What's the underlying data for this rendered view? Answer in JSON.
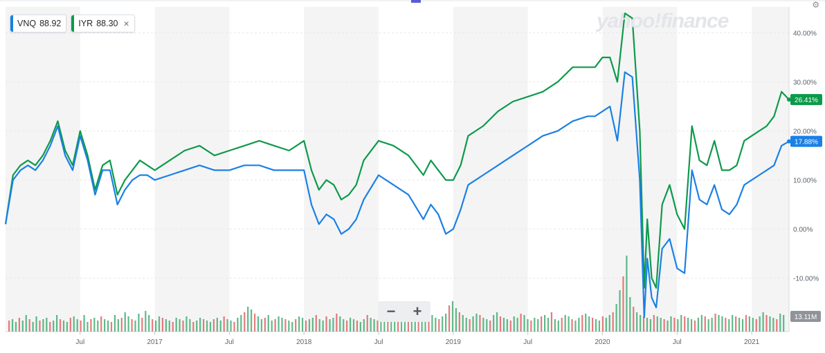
{
  "legend": [
    {
      "symbol": "VNQ",
      "value": "88.92",
      "color": "#1a80e5"
    },
    {
      "symbol": "IYR",
      "value": "88.30",
      "color": "#0c9a4a",
      "close": "×"
    }
  ],
  "logo": "yahoo!finance",
  "zoom": {
    "minus": "−",
    "plus": "+"
  },
  "corner_icon": "settings-icon",
  "chart_data": {
    "type": "line",
    "y_ticks": [
      "40.00%",
      "30.00%",
      "20.00%",
      "10.00%",
      "0.00%",
      "-10.00%"
    ],
    "y_tick_values": [
      40,
      30,
      20,
      10,
      0,
      -10
    ],
    "ylim": [
      -20.9,
      45.3
    ],
    "xlim": [
      2016.0,
      2021.25
    ],
    "x_ticks": [
      {
        "label": "Jul",
        "t": 2016.5
      },
      {
        "label": "2017",
        "t": 2017.0
      },
      {
        "label": "Jul",
        "t": 2017.5
      },
      {
        "label": "2018",
        "t": 2018.0
      },
      {
        "label": "Jul",
        "t": 2018.5
      },
      {
        "label": "2019",
        "t": 2019.0
      },
      {
        "label": "Jul",
        "t": 2019.5
      },
      {
        "label": "2020",
        "t": 2020.0
      },
      {
        "label": "Jul",
        "t": 2020.5
      },
      {
        "label": "2021",
        "t": 2021.0
      }
    ],
    "shaded_bands": [
      [
        2016.0,
        2016.5
      ],
      [
        2017.0,
        2017.5
      ],
      [
        2018.0,
        2018.5
      ],
      [
        2019.0,
        2019.5
      ],
      [
        2020.0,
        2020.5
      ],
      [
        2021.0,
        2021.25
      ]
    ],
    "series": [
      {
        "name": "IYR",
        "color": "#0c9a4a",
        "end_label": "26.41%",
        "x": [
          2016.0,
          2016.05,
          2016.1,
          2016.15,
          2016.2,
          2016.25,
          2016.3,
          2016.35,
          2016.4,
          2016.45,
          2016.5,
          2016.55,
          2016.6,
          2016.65,
          2016.7,
          2016.75,
          2016.8,
          2016.85,
          2016.9,
          2016.95,
          2017.0,
          2017.1,
          2017.2,
          2017.3,
          2017.4,
          2017.5,
          2017.6,
          2017.7,
          2017.8,
          2017.9,
          2018.0,
          2018.05,
          2018.1,
          2018.15,
          2018.2,
          2018.25,
          2018.3,
          2018.35,
          2018.4,
          2018.5,
          2018.6,
          2018.7,
          2018.8,
          2018.85,
          2018.9,
          2018.95,
          2019.0,
          2019.05,
          2019.1,
          2019.2,
          2019.3,
          2019.4,
          2019.5,
          2019.6,
          2019.7,
          2019.8,
          2019.9,
          2019.95,
          2020.0,
          2020.05,
          2020.1,
          2020.15,
          2020.2,
          2020.25,
          2020.28,
          2020.3,
          2020.33,
          2020.36,
          2020.4,
          2020.45,
          2020.5,
          2020.55,
          2020.6,
          2020.65,
          2020.7,
          2020.75,
          2020.8,
          2020.85,
          2020.9,
          2020.95,
          2021.0,
          2021.05,
          2021.1,
          2021.15,
          2021.2,
          2021.25
        ],
        "y": [
          1,
          11,
          13,
          14,
          13,
          15,
          18,
          22,
          16,
          13,
          20,
          15,
          8,
          13,
          14,
          7,
          10,
          12,
          14,
          13,
          12,
          14,
          16,
          17,
          15,
          16,
          17,
          18,
          17,
          16,
          18,
          12,
          8,
          10,
          9,
          6,
          7,
          9,
          14,
          18,
          17,
          15,
          11,
          14,
          12,
          10,
          10,
          13,
          19,
          21,
          24,
          26,
          27,
          28,
          30,
          33,
          33,
          33,
          35,
          35,
          30,
          44,
          43,
          20,
          -12,
          2,
          -10,
          -12,
          5,
          9,
          3,
          0,
          21,
          14,
          13,
          18,
          12,
          12,
          13,
          18,
          19,
          20,
          21,
          23,
          28,
          26.41
        ]
      },
      {
        "name": "VNQ",
        "color": "#1a80e5",
        "end_label": "17.88%",
        "x": [
          2016.0,
          2016.05,
          2016.1,
          2016.15,
          2016.2,
          2016.25,
          2016.3,
          2016.35,
          2016.4,
          2016.45,
          2016.5,
          2016.55,
          2016.6,
          2016.65,
          2016.7,
          2016.75,
          2016.8,
          2016.85,
          2016.9,
          2016.95,
          2017.0,
          2017.1,
          2017.2,
          2017.3,
          2017.4,
          2017.5,
          2017.6,
          2017.7,
          2017.8,
          2017.9,
          2018.0,
          2018.05,
          2018.1,
          2018.15,
          2018.2,
          2018.25,
          2018.3,
          2018.35,
          2018.4,
          2018.5,
          2018.6,
          2018.7,
          2018.8,
          2018.85,
          2018.9,
          2018.95,
          2019.0,
          2019.05,
          2019.1,
          2019.2,
          2019.3,
          2019.4,
          2019.5,
          2019.6,
          2019.7,
          2019.8,
          2019.9,
          2019.95,
          2020.0,
          2020.05,
          2020.1,
          2020.15,
          2020.2,
          2020.25,
          2020.28,
          2020.3,
          2020.33,
          2020.36,
          2020.4,
          2020.45,
          2020.5,
          2020.55,
          2020.6,
          2020.65,
          2020.7,
          2020.75,
          2020.8,
          2020.85,
          2020.9,
          2020.95,
          2021.0,
          2021.05,
          2021.1,
          2021.15,
          2021.2,
          2021.25
        ],
        "y": [
          1,
          10,
          12,
          13,
          12,
          14,
          17,
          21,
          15,
          12,
          19,
          14,
          7,
          12,
          12,
          5,
          8,
          10,
          11,
          11,
          10,
          11,
          12,
          13,
          12,
          12,
          13,
          13,
          12,
          12,
          12,
          5,
          1,
          3,
          2,
          -1,
          0,
          2,
          6,
          11,
          9,
          7,
          2,
          5,
          3,
          -1,
          0,
          4,
          9,
          11,
          13,
          15,
          17,
          19,
          20,
          22,
          23,
          23,
          24,
          25,
          18,
          32,
          31,
          10,
          -18,
          -6,
          -14,
          -16,
          -4,
          -2,
          -8,
          -9,
          12,
          6,
          5,
          9,
          4,
          3,
          5,
          9,
          10,
          11,
          12,
          13,
          17,
          17.88
        ]
      }
    ],
    "volume": {
      "ylim": [
        0,
        60
      ],
      "label": "13.11M",
      "values": [
        8,
        9,
        7,
        10,
        8,
        12,
        9,
        7,
        11,
        8,
        9,
        10,
        7,
        8,
        12,
        9,
        8,
        7,
        10,
        11,
        9,
        8,
        12,
        7,
        9,
        10,
        8,
        11,
        9,
        8,
        7,
        12,
        9,
        10,
        14,
        11,
        9,
        8,
        13,
        10,
        15,
        12,
        9,
        8,
        11,
        10,
        9,
        8,
        7,
        10,
        9,
        8,
        11,
        9,
        7,
        8,
        10,
        9,
        8,
        7,
        9,
        10,
        8,
        11,
        9,
        8,
        7,
        10,
        12,
        14,
        18,
        16,
        13,
        11,
        9,
        10,
        12,
        8,
        9,
        11,
        10,
        9,
        8,
        7,
        9,
        11,
        10,
        8,
        9,
        10,
        12,
        9,
        8,
        11,
        9,
        10,
        13,
        11,
        9,
        8,
        10,
        9,
        8,
        7,
        9,
        12,
        10,
        9,
        8,
        11,
        13,
        10,
        9,
        12,
        11,
        8,
        10,
        9,
        14,
        12,
        11,
        10,
        9,
        8,
        12,
        10,
        9,
        11,
        13,
        19,
        22,
        17,
        14,
        12,
        10,
        9,
        11,
        13,
        12,
        10,
        9,
        8,
        12,
        14,
        11,
        10,
        9,
        8,
        11,
        10,
        13,
        12,
        9,
        8,
        10,
        9,
        11,
        12,
        10,
        14,
        9,
        8,
        10,
        12,
        11,
        9,
        8,
        10,
        12,
        13,
        11,
        10,
        9,
        8,
        11,
        10,
        12,
        14,
        20,
        30,
        40,
        55,
        25,
        18,
        14,
        12,
        11,
        10,
        9,
        12,
        11,
        10,
        9,
        8,
        11,
        10,
        9,
        12,
        11,
        10,
        9,
        8,
        10,
        12,
        11,
        9,
        10,
        13,
        12,
        11,
        10,
        9,
        12,
        11,
        10,
        9,
        12,
        11,
        10,
        9,
        11,
        14,
        12,
        11,
        10,
        9,
        13,
        12
      ],
      "colors": [
        "g",
        "r"
      ]
    }
  }
}
